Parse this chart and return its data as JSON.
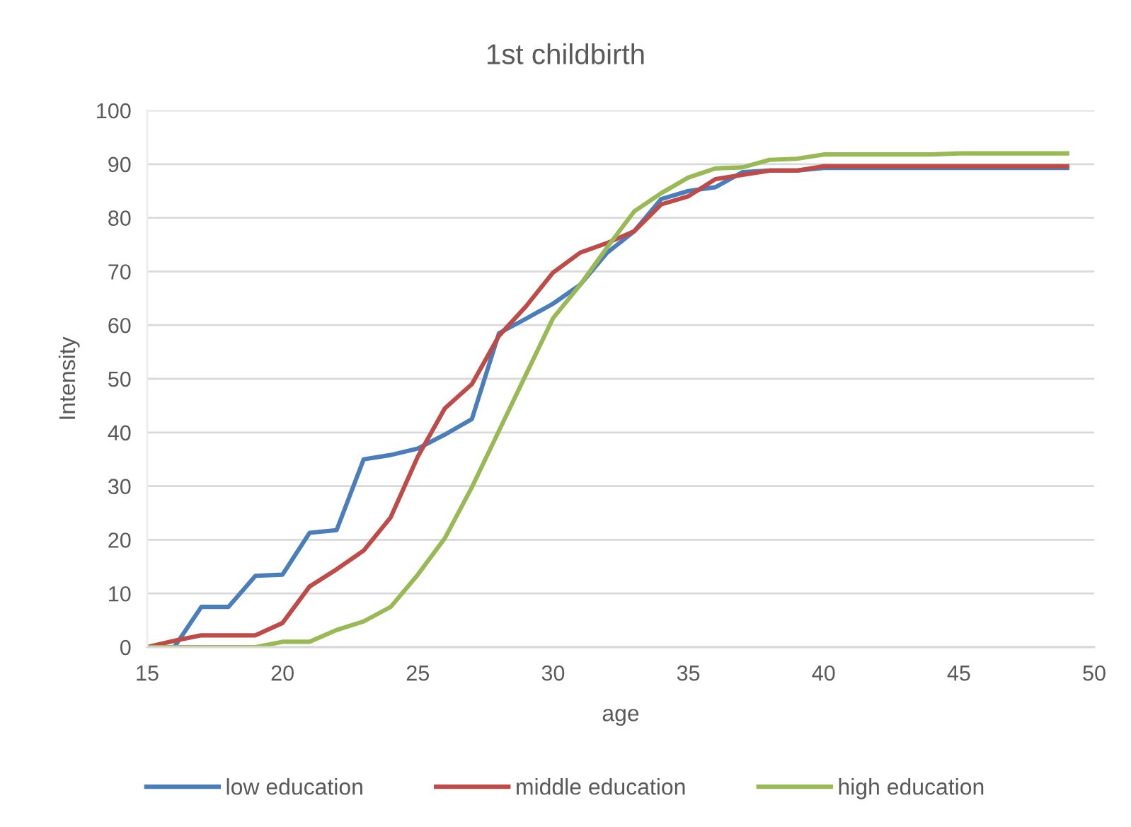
{
  "chart_data": {
    "type": "line",
    "title": "1st childbirth",
    "xlabel": "age",
    "ylabel": "Intensity",
    "x": [
      15,
      16,
      17,
      18,
      19,
      20,
      21,
      22,
      23,
      24,
      25,
      26,
      27,
      28,
      29,
      30,
      31,
      32,
      33,
      34,
      35,
      36,
      37,
      38,
      39,
      40,
      41,
      42,
      43,
      44,
      45,
      46,
      47,
      48,
      49
    ],
    "series": [
      {
        "name": "low education",
        "color": "#4a7ebb",
        "values": [
          0,
          0,
          7.5,
          7.5,
          13.3,
          13.5,
          21.3,
          21.8,
          35,
          35.8,
          37,
          39.6,
          42.5,
          58.5,
          61.2,
          64,
          67.5,
          73.5,
          77.5,
          83.5,
          85,
          85.7,
          88.5,
          88.8,
          88.8,
          89.3,
          89.3,
          89.3,
          89.3,
          89.3,
          89.3,
          89.3,
          89.3,
          89.3,
          89.3
        ]
      },
      {
        "name": "middle education",
        "color": "#be4b48",
        "values": [
          0,
          1.2,
          2.2,
          2.2,
          2.2,
          4.5,
          11.3,
          14.5,
          18,
          24.2,
          35.5,
          44.5,
          49,
          58,
          63.5,
          69.8,
          73.5,
          75.3,
          77.5,
          82.5,
          84,
          87.2,
          88,
          88.8,
          88.8,
          89.6,
          89.6,
          89.6,
          89.6,
          89.6,
          89.6,
          89.6,
          89.6,
          89.6,
          89.6
        ]
      },
      {
        "name": "high education",
        "color": "#98b954",
        "values": [
          0,
          0,
          0,
          0,
          0,
          1,
          1,
          3.2,
          4.8,
          7.5,
          13.5,
          20.3,
          29.8,
          40.3,
          50.8,
          61.3,
          67.5,
          74.5,
          81.2,
          84.6,
          87.5,
          89.2,
          89.4,
          90.8,
          91,
          91.8,
          91.8,
          91.8,
          91.8,
          91.8,
          92,
          92,
          92,
          92,
          92
        ]
      }
    ],
    "xlim": [
      15,
      50
    ],
    "xticks": [
      15,
      20,
      25,
      30,
      35,
      40,
      45,
      50
    ],
    "ylim": [
      0,
      100
    ],
    "yticks": [
      0,
      10,
      20,
      30,
      40,
      50,
      60,
      70,
      80,
      90,
      100
    ],
    "grid": "y",
    "legend": "bottom",
    "marker": "none",
    "line_style": "solid"
  }
}
